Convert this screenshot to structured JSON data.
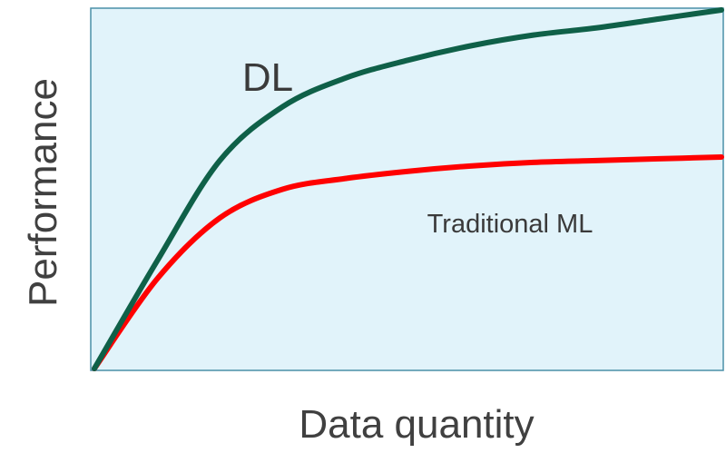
{
  "chart_data": {
    "type": "line",
    "title": "",
    "xlabel": "Data quantity",
    "ylabel": "Performance",
    "xlim": [
      0,
      1
    ],
    "ylim": [
      0,
      1
    ],
    "grid": false,
    "legend": "none",
    "background": "#e1f3fa",
    "series": [
      {
        "name": "DL",
        "color": "#0f6048",
        "x": [
          0.0,
          0.1,
          0.2,
          0.3,
          0.4,
          0.5,
          0.6,
          0.7,
          0.8,
          0.9,
          1.0
        ],
        "y": [
          0.0,
          0.3,
          0.58,
          0.73,
          0.81,
          0.86,
          0.9,
          0.93,
          0.95,
          0.975,
          1.0
        ]
      },
      {
        "name": "Traditional ML",
        "color": "#ff0000",
        "x": [
          0.0,
          0.1,
          0.2,
          0.3,
          0.4,
          0.5,
          0.6,
          0.7,
          0.8,
          0.9,
          1.0
        ],
        "y": [
          0.0,
          0.25,
          0.42,
          0.5,
          0.53,
          0.55,
          0.565,
          0.575,
          0.58,
          0.585,
          0.59
        ]
      }
    ]
  }
}
